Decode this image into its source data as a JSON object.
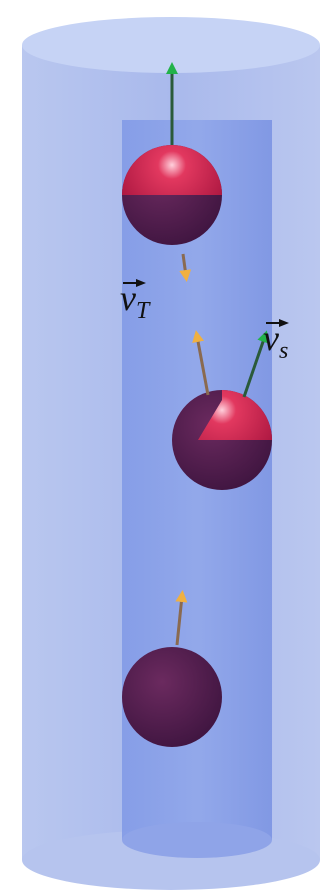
{
  "labels": [
    {
      "base": "v",
      "sub": "T"
    },
    {
      "base": "v",
      "sub": "s"
    }
  ]
}
